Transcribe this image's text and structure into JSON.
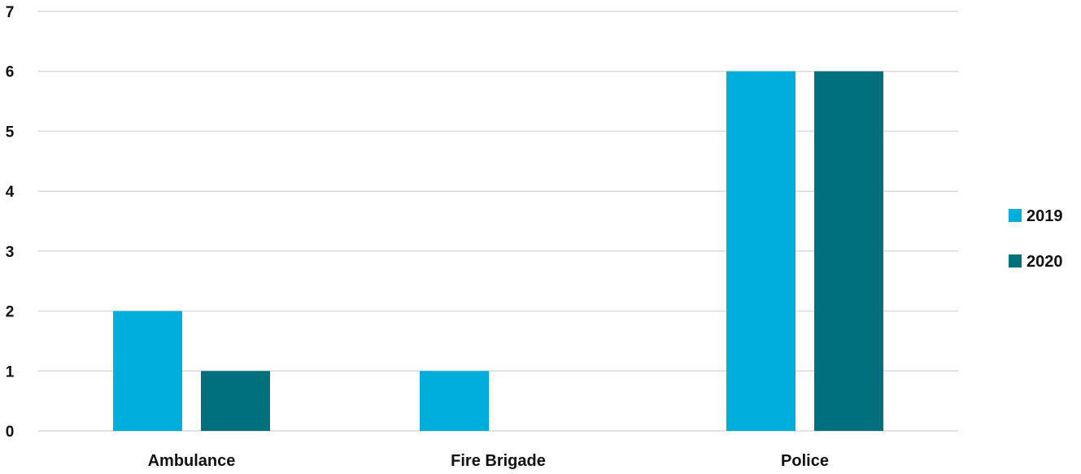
{
  "chart_data": {
    "type": "bar",
    "title": "",
    "xlabel": "",
    "ylabel": "",
    "categories": [
      "Ambulance",
      "Fire Brigade",
      "Police"
    ],
    "series": [
      {
        "name": "2019",
        "values": [
          2,
          1,
          6
        ],
        "color": "#00AEDB"
      },
      {
        "name": "2020",
        "values": [
          1,
          0,
          6
        ],
        "color": "#00707C"
      }
    ],
    "ylim": [
      0,
      7
    ],
    "yticks": [
      "0",
      "1",
      "2",
      "3",
      "4",
      "5",
      "6",
      "7"
    ],
    "grid": true,
    "legend_position": "right"
  }
}
